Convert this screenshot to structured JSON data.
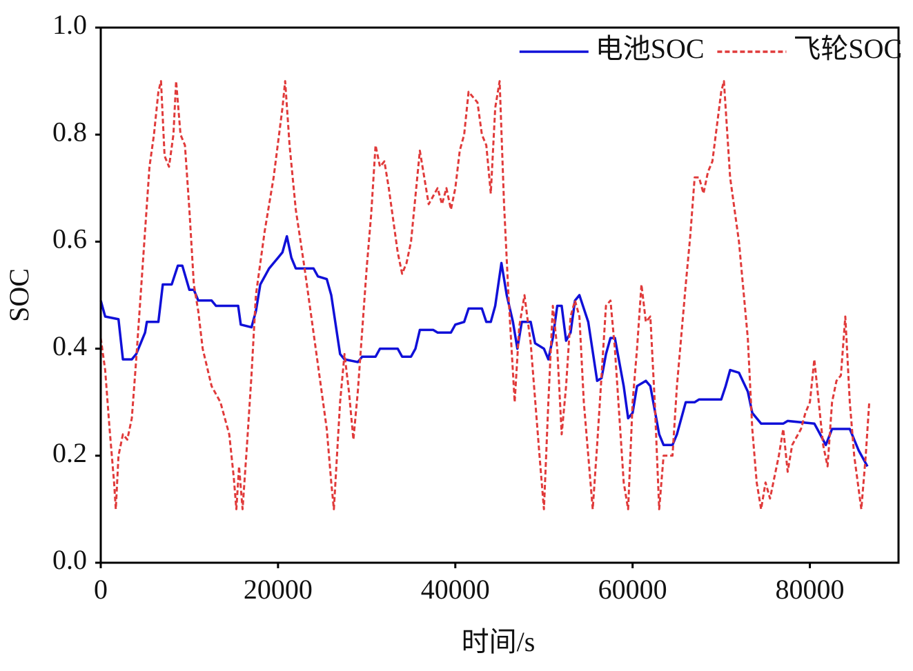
{
  "chart_data": {
    "type": "line",
    "xlabel": "时间/s",
    "ylabel": "SOC",
    "xlim": [
      0,
      90000
    ],
    "ylim": [
      0,
      1
    ],
    "xticks": [
      0,
      20000,
      40000,
      60000,
      80000
    ],
    "yticks": [
      {
        "value": 0,
        "label": "0.0"
      },
      0.2,
      0.4,
      0.6,
      0.8,
      {
        "value": 1,
        "label": "1.0"
      }
    ],
    "legend": "upper right",
    "grid": false,
    "series": [
      {
        "name": "电池SOC",
        "color": "#1010d8",
        "dash": "solid",
        "x": [
          0,
          500,
          2000,
          2500,
          3500,
          4000,
          5000,
          5200,
          6500,
          7000,
          8000,
          8700,
          9200,
          10000,
          10500,
          11000,
          12500,
          13000,
          15500,
          15800,
          17000,
          17500,
          18000,
          19000,
          20000,
          20500,
          21000,
          21500,
          22000,
          24000,
          24500,
          25500,
          26000,
          27000,
          27500,
          29000,
          29500,
          31000,
          31500,
          33500,
          34000,
          35000,
          35500,
          36000,
          37500,
          38000,
          39500,
          40000,
          41000,
          41500,
          43000,
          43500,
          44000,
          44500,
          45200,
          45800,
          46500,
          47000,
          47500,
          48500,
          49000,
          50000,
          50500,
          51000,
          51500,
          52000,
          52500,
          53000,
          53500,
          54000,
          55000,
          56000,
          56500,
          57000,
          57500,
          58000,
          59000,
          59500,
          60000,
          60500,
          61500,
          62000,
          63000,
          63500,
          64500,
          65000,
          65500,
          66000,
          67000,
          67500,
          70000,
          70500,
          71000,
          72000,
          73000,
          73500,
          74500,
          77000,
          77500,
          80500,
          81000,
          81800,
          82500,
          84500,
          85000,
          85500,
          86500
        ],
        "values": [
          0.49,
          0.46,
          0.455,
          0.38,
          0.38,
          0.39,
          0.43,
          0.45,
          0.45,
          0.52,
          0.52,
          0.555,
          0.555,
          0.51,
          0.51,
          0.49,
          0.49,
          0.48,
          0.48,
          0.445,
          0.44,
          0.47,
          0.52,
          0.55,
          0.57,
          0.58,
          0.61,
          0.57,
          0.55,
          0.55,
          0.535,
          0.53,
          0.5,
          0.39,
          0.38,
          0.375,
          0.385,
          0.385,
          0.4,
          0.4,
          0.385,
          0.385,
          0.4,
          0.435,
          0.435,
          0.43,
          0.43,
          0.445,
          0.45,
          0.475,
          0.475,
          0.45,
          0.45,
          0.48,
          0.56,
          0.5,
          0.45,
          0.4,
          0.45,
          0.45,
          0.41,
          0.4,
          0.38,
          0.42,
          0.48,
          0.48,
          0.415,
          0.43,
          0.49,
          0.5,
          0.45,
          0.34,
          0.345,
          0.39,
          0.42,
          0.42,
          0.33,
          0.27,
          0.28,
          0.33,
          0.34,
          0.33,
          0.24,
          0.22,
          0.22,
          0.24,
          0.27,
          0.3,
          0.3,
          0.305,
          0.305,
          0.33,
          0.36,
          0.355,
          0.32,
          0.28,
          0.26,
          0.26,
          0.265,
          0.26,
          0.245,
          0.22,
          0.25,
          0.25,
          0.23,
          0.21,
          0.18
        ]
      },
      {
        "name": "飞轮SOC",
        "color": "#e03a3a",
        "dash": "dashed",
        "x": [
          0,
          500,
          1000,
          1500,
          1700,
          2000,
          2500,
          3000,
          3500,
          4000,
          4500,
          5000,
          5500,
          6000,
          6500,
          6800,
          7200,
          7700,
          8200,
          8500,
          9000,
          9500,
          10000,
          10500,
          11000,
          11500,
          12500,
          13500,
          14500,
          15000,
          15300,
          15600,
          16000,
          16500,
          17000,
          17500,
          18500,
          19500,
          20500,
          20800,
          21300,
          22000,
          23000,
          24000,
          25000,
          25500,
          26000,
          26300,
          27000,
          27500,
          28000,
          28500,
          29000,
          30000,
          30500,
          31000,
          31500,
          32000,
          32500,
          33500,
          34000,
          34500,
          35000,
          36000,
          36500,
          37000,
          38000,
          38500,
          39000,
          39500,
          40000,
          40500,
          41000,
          41500,
          42500,
          43000,
          43500,
          44000,
          44500,
          45000,
          45500,
          46000,
          46700,
          47200,
          47800,
          48500,
          49500,
          50000,
          50500,
          51000,
          51500,
          52000,
          52500,
          53000,
          53500,
          54000,
          54500,
          55500,
          56000,
          57000,
          57500,
          58000,
          59000,
          59500,
          60000,
          60500,
          61000,
          61500,
          62000,
          62500,
          63000,
          63500,
          64500,
          65000,
          66000,
          66500,
          67000,
          67500,
          68000,
          68500,
          69000,
          70000,
          70300,
          71000,
          72000,
          73000,
          73500,
          74000,
          74500,
          75000,
          75500,
          76500,
          77000,
          77500,
          78000,
          79000,
          79500,
          80000,
          80500,
          81000,
          81500,
          82000,
          82500,
          83000,
          83500,
          84000,
          84500,
          85000,
          85800,
          86300,
          86700
        ],
        "values": [
          0.42,
          0.36,
          0.25,
          0.15,
          0.1,
          0.2,
          0.24,
          0.23,
          0.27,
          0.38,
          0.5,
          0.62,
          0.74,
          0.8,
          0.88,
          0.9,
          0.76,
          0.74,
          0.8,
          0.9,
          0.8,
          0.78,
          0.66,
          0.52,
          0.47,
          0.4,
          0.33,
          0.3,
          0.24,
          0.16,
          0.1,
          0.18,
          0.1,
          0.22,
          0.35,
          0.5,
          0.62,
          0.72,
          0.85,
          0.9,
          0.78,
          0.66,
          0.55,
          0.43,
          0.31,
          0.25,
          0.15,
          0.1,
          0.3,
          0.39,
          0.32,
          0.23,
          0.32,
          0.55,
          0.65,
          0.78,
          0.74,
          0.75,
          0.7,
          0.58,
          0.54,
          0.56,
          0.6,
          0.77,
          0.72,
          0.67,
          0.7,
          0.67,
          0.7,
          0.66,
          0.7,
          0.77,
          0.8,
          0.88,
          0.86,
          0.8,
          0.78,
          0.69,
          0.85,
          0.9,
          0.67,
          0.5,
          0.3,
          0.44,
          0.5,
          0.41,
          0.2,
          0.1,
          0.3,
          0.48,
          0.4,
          0.24,
          0.33,
          0.46,
          0.49,
          0.46,
          0.3,
          0.1,
          0.22,
          0.48,
          0.49,
          0.4,
          0.15,
          0.1,
          0.3,
          0.4,
          0.52,
          0.45,
          0.46,
          0.3,
          0.1,
          0.2,
          0.2,
          0.33,
          0.52,
          0.61,
          0.72,
          0.72,
          0.69,
          0.73,
          0.75,
          0.88,
          0.9,
          0.72,
          0.6,
          0.42,
          0.25,
          0.15,
          0.1,
          0.15,
          0.12,
          0.2,
          0.25,
          0.17,
          0.22,
          0.25,
          0.28,
          0.3,
          0.38,
          0.3,
          0.22,
          0.18,
          0.3,
          0.34,
          0.35,
          0.46,
          0.3,
          0.2,
          0.1,
          0.2,
          0.3
        ]
      }
    ]
  }
}
